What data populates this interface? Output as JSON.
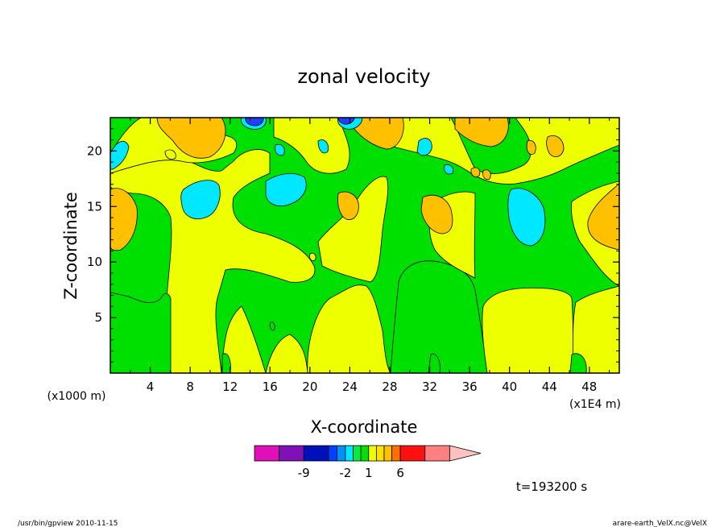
{
  "chart_data": {
    "type": "heatmap",
    "title": "zonal velocity",
    "xlabel": "X-coordinate",
    "ylabel": "Z-coordinate",
    "x_ticks": [
      "4",
      "8",
      "12",
      "16",
      "20",
      "24",
      "28",
      "32",
      "36",
      "40",
      "44",
      "48"
    ],
    "y_ticks": [
      "5",
      "10",
      "15",
      "20"
    ],
    "xlim": [
      0,
      51
    ],
    "ylim": [
      0,
      23
    ],
    "y_unit": "(x1000 m)",
    "x_unit": "(x1E4 m)",
    "time_label": "t=193200 s",
    "colorbar": {
      "labels": [
        {
          "text": "-9",
          "level": -9
        },
        {
          "text": "-2",
          "level": -2
        },
        {
          "text": "1",
          "level": 1
        },
        {
          "text": "6",
          "level": 6
        }
      ],
      "bins": [
        {
          "from": -15,
          "to": -12,
          "color": "#e010b8"
        },
        {
          "from": -12,
          "to": -9,
          "color": "#8010b8"
        },
        {
          "from": -9,
          "to": -6,
          "color": "#0010b8"
        },
        {
          "from": -6,
          "to": -4,
          "color": "#0040ff"
        },
        {
          "from": -4,
          "to": -2,
          "color": "#0090ff"
        },
        {
          "from": -2,
          "to": -1,
          "color": "#00e8ff"
        },
        {
          "from": -1,
          "to": 0,
          "color": "#00ee44"
        },
        {
          "from": 0,
          "to": 1,
          "color": "#00e000"
        },
        {
          "from": 1,
          "to": 2,
          "color": "#eeff00"
        },
        {
          "from": 2,
          "to": 3,
          "color": "#ffe000"
        },
        {
          "from": 3,
          "to": 4,
          "color": "#ffc000"
        },
        {
          "from": 4,
          "to": 6,
          "color": "#ff7000"
        },
        {
          "from": 6,
          "to": 9,
          "color": "#ff1010"
        },
        {
          "from": 9,
          "to": 12,
          "color": "#ff8080"
        },
        {
          "from": 12,
          "to": 15,
          "color": "#ffc0c0"
        }
      ],
      "regions_shown": [
        {
          "level": "-6 to -2",
          "color": "#1f3fff",
          "x": 14.5,
          "z": 22.5
        },
        {
          "level": "-2 to -1",
          "color": "#00e8ff",
          "x": 10,
          "z": 15
        },
        {
          "level": "-2 to -1",
          "color": "#00e8ff",
          "x": 18,
          "z": 16
        },
        {
          "level": "-2 to -1",
          "color": "#00e8ff",
          "x": 43,
          "z": 14
        },
        {
          "level": "3 to 4",
          "color": "#ffc000",
          "x": 1,
          "z": 15
        },
        {
          "level": "3 to 4",
          "color": "#ffc000",
          "x": 50,
          "z": 13
        },
        {
          "level": "3 to 4",
          "color": "#ffc000",
          "x": 33,
          "z": 14
        }
      ]
    }
  },
  "footer": {
    "left": "/usr/bin/gpview   2010-11-15",
    "right": "arare-earth_VelX.nc@VelX"
  }
}
